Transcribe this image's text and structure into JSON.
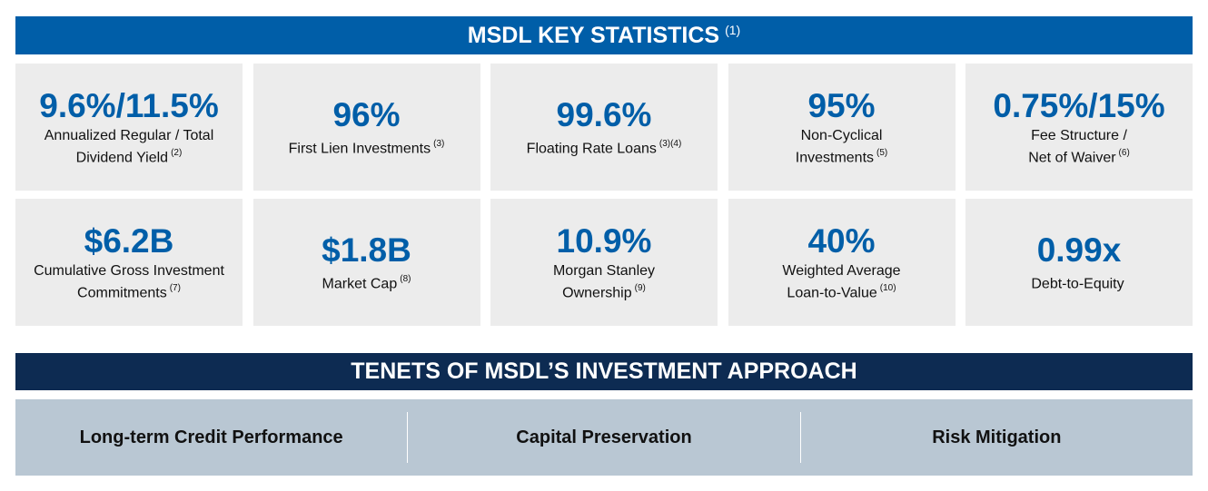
{
  "colors": {
    "top_banner": "#005ea8",
    "bottom_banner": "#0d2b52",
    "accent_value": "#005ea8",
    "tile_background": "#ececec",
    "tenets_background": "#b9c7d3"
  },
  "stats_header": {
    "title": "MSDL KEY STATISTICS",
    "footnote": "(1)"
  },
  "stats": [
    {
      "value": "9.6%/11.5%",
      "label": "Annualized Regular / Total\nDividend Yield",
      "footnote": "(2)"
    },
    {
      "value": "96%",
      "label": "First Lien Investments",
      "footnote": "(3)"
    },
    {
      "value": "99.6%",
      "label": "Floating Rate Loans",
      "footnote": "(3)(4)"
    },
    {
      "value": "95%",
      "label": "Non-Cyclical\nInvestments",
      "footnote": "(5)"
    },
    {
      "value": "0.75%/15%",
      "label": "Fee Structure /\nNet of Waiver",
      "footnote": "(6)"
    },
    {
      "value": "$6.2B",
      "label": "Cumulative Gross Investment\nCommitments",
      "footnote": "(7)"
    },
    {
      "value": "$1.8B",
      "label": "Market Cap",
      "footnote": "(8)"
    },
    {
      "value": "10.9%",
      "label": "Morgan Stanley\nOwnership",
      "footnote": "(9)"
    },
    {
      "value": "40%",
      "label": "Weighted Average\nLoan-to-Value",
      "footnote": "(10)"
    },
    {
      "value": "0.99x",
      "label": "Debt-to-Equity",
      "footnote": ""
    }
  ],
  "tenets_header": {
    "title": "TENETS OF MSDL’S INVESTMENT APPROACH"
  },
  "tenets": [
    "Long-term Credit Performance",
    "Capital Preservation",
    "Risk Mitigation"
  ]
}
